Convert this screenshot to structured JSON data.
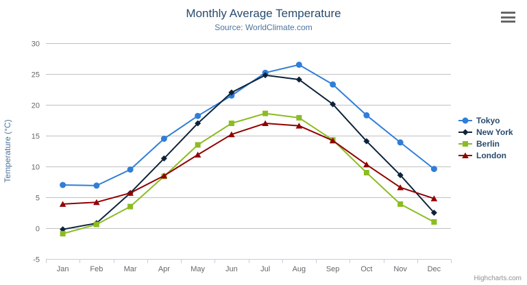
{
  "chart_data": {
    "type": "line",
    "title": "Monthly Average Temperature",
    "subtitle": "Source: WorldClimate.com",
    "categories": [
      "Jan",
      "Feb",
      "Mar",
      "Apr",
      "May",
      "Jun",
      "Jul",
      "Aug",
      "Sep",
      "Oct",
      "Nov",
      "Dec"
    ],
    "series": [
      {
        "name": "Tokyo",
        "color": "#2f7ed8",
        "marker": "circle",
        "values": [
          7.0,
          6.9,
          9.5,
          14.5,
          18.2,
          21.5,
          25.2,
          26.5,
          23.3,
          18.3,
          13.9,
          9.6
        ]
      },
      {
        "name": "New York",
        "color": "#0d233a",
        "marker": "diamond",
        "values": [
          -0.2,
          0.8,
          5.7,
          11.3,
          17.0,
          22.0,
          24.8,
          24.1,
          20.1,
          14.1,
          8.6,
          2.5
        ]
      },
      {
        "name": "Berlin",
        "color": "#8bbc21",
        "marker": "square",
        "values": [
          -0.9,
          0.6,
          3.5,
          8.4,
          13.5,
          17.0,
          18.6,
          17.9,
          14.3,
          9.0,
          3.9,
          1.0
        ]
      },
      {
        "name": "London",
        "color": "#910000",
        "marker": "triangle",
        "values": [
          3.9,
          4.2,
          5.7,
          8.5,
          11.9,
          15.2,
          17.0,
          16.6,
          14.2,
          10.3,
          6.6,
          4.8
        ]
      }
    ],
    "xlabel": "",
    "ylabel": "Temperature (°C)",
    "ylim": [
      -5,
      30
    ],
    "yticks": [
      -5,
      0,
      5,
      10,
      15,
      20,
      25,
      30
    ],
    "grid": true,
    "legend_position": "right"
  },
  "credits": {
    "label": "Highcharts.com"
  },
  "theme": {
    "title_color": "#274b6d",
    "subtitle_color": "#4d759e",
    "axis_label_color": "#666666",
    "axis_title_color": "#4d759e",
    "legend_text_color": "#274b6d",
    "gridline_color": "#c0c0c0",
    "axis_line_color": "#c0d0e0",
    "credits_color": "#909090",
    "hamburger_color": "#666666",
    "background": "#ffffff"
  }
}
